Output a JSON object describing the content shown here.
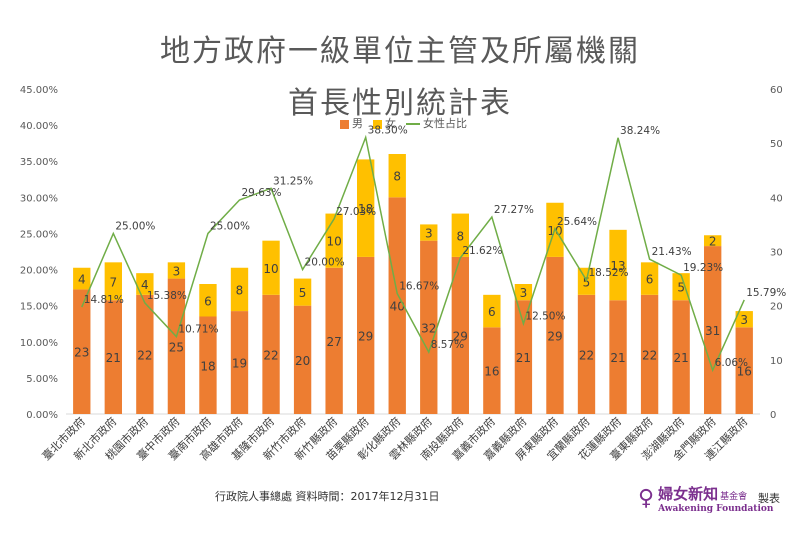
{
  "title_line1": "地方政府一級單位主管及所屬機關",
  "title_line2": "首長性別統計表",
  "legend": {
    "male": "男",
    "female": "女",
    "ratio": "女性占比"
  },
  "footer_source": "行政院人事總處 資料時間：2017年12月31日",
  "logo": {
    "name": "婦女新知",
    "suffix": "基金會",
    "english": "Awakening Foundation"
  },
  "made_by": "製表",
  "colors": {
    "male": "#ed7d31",
    "female": "#ffc000",
    "ratio": "#70ad47"
  },
  "chart_data": {
    "type": "bar",
    "stacked": true,
    "categories": [
      "臺北市政府",
      "新北市政府",
      "桃園市政府",
      "臺中市政府",
      "臺南市政府",
      "高雄市政府",
      "基隆市政府",
      "新竹市政府",
      "新竹縣政府",
      "苗栗縣政府",
      "彰化縣政府",
      "雲林縣政府",
      "南投縣政府",
      "嘉義市政府",
      "嘉義縣政府",
      "屏東縣政府",
      "宜蘭縣政府",
      "花蓮縣政府",
      "臺東縣政府",
      "澎湖縣政府",
      "金門縣政府",
      "連江縣政府"
    ],
    "series": [
      {
        "name": "男",
        "values": [
          23,
          21,
          22,
          25,
          18,
          19,
          22,
          20,
          27,
          29,
          40,
          32,
          29,
          16,
          21,
          29,
          22,
          21,
          22,
          21,
          31,
          16
        ]
      },
      {
        "name": "女",
        "values": [
          4,
          7,
          4,
          3,
          6,
          8,
          10,
          5,
          10,
          18,
          8,
          3,
          8,
          6,
          3,
          10,
          5,
          13,
          6,
          5,
          2,
          3
        ]
      }
    ],
    "line_series": {
      "name": "女性占比",
      "values": [
        14.81,
        25.0,
        15.38,
        10.71,
        25.0,
        29.63,
        31.25,
        20.0,
        27.03,
        38.3,
        16.67,
        8.57,
        21.62,
        27.27,
        12.5,
        25.64,
        18.52,
        38.24,
        21.43,
        19.23,
        6.06,
        15.79
      ],
      "labels": [
        "14.81%",
        "25.00%",
        "15.38%",
        "10.71%",
        "25.00%",
        "29.63%",
        "31.25%",
        "20.00%",
        "27.03%",
        "38.30%",
        "16.67%",
        "8.57%",
        "21.62%",
        "27.27%",
        "12.50%",
        "25.64%",
        "18.52%",
        "38.24%",
        "21.43%",
        "19.23%",
        "6.06%",
        "15.79%"
      ]
    },
    "y_left_ticks": [
      "0.00%",
      "5.00%",
      "10.00%",
      "15.00%",
      "20.00%",
      "25.00%",
      "30.00%",
      "35.00%",
      "40.00%",
      "45.00%"
    ],
    "y_left_range": [
      0,
      45
    ],
    "y_right_ticks": [
      "0",
      "10",
      "20",
      "30",
      "40",
      "50",
      "60"
    ],
    "y_right_range": [
      0,
      60
    ],
    "grid": false,
    "legend_position": "top"
  }
}
